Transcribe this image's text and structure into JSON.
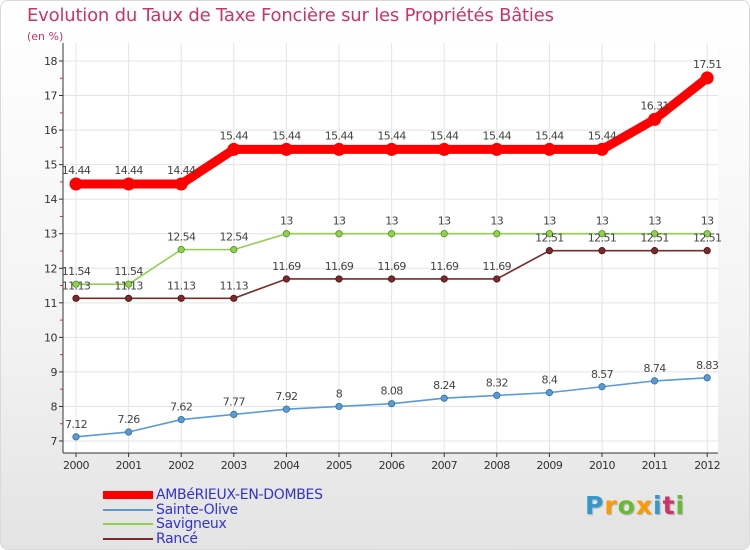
{
  "chart_data": {
    "type": "line",
    "title": "Evolution du Taux de Taxe Foncière sur les Propriétés Bâties",
    "subtitle": "(en %)",
    "x": [
      "2000",
      "2001",
      "2002",
      "2003",
      "2004",
      "2005",
      "2006",
      "2007",
      "2008",
      "2009",
      "2010",
      "2011",
      "2012"
    ],
    "yticks": [
      7,
      8,
      9,
      10,
      11,
      12,
      13,
      14,
      15,
      16,
      17,
      18
    ],
    "ylim": [
      7,
      18
    ],
    "series": [
      {
        "name": "AMBéRIEUX-EN-DOMBES",
        "color": "#ff0000",
        "values": [
          14.44,
          14.44,
          14.44,
          15.44,
          15.44,
          15.44,
          15.44,
          15.44,
          15.44,
          15.44,
          15.44,
          16.31,
          17.51
        ],
        "labels": [
          "14.44",
          "14.44",
          "14.44",
          "15.44",
          "15.44",
          "15.44",
          "15.44",
          "15.44",
          "15.44",
          "15.44",
          "15.44",
          "16.31",
          "17.51"
        ]
      },
      {
        "name": "Sainte-Olive",
        "color": "#5b9bd5",
        "values": [
          7.12,
          7.26,
          7.62,
          7.77,
          7.92,
          8,
          8.08,
          8.24,
          8.32,
          8.4,
          8.57,
          8.74,
          8.83
        ],
        "labels": [
          "7.12",
          "7.26",
          "7.62",
          "7.77",
          "7.92",
          "8",
          "8.08",
          "8.24",
          "8.32",
          "8.4",
          "8.57",
          "8.74",
          "8.83"
        ]
      },
      {
        "name": "Savigneux",
        "color": "#92d050",
        "values": [
          11.54,
          11.54,
          12.54,
          12.54,
          13,
          13,
          13,
          13,
          13,
          13,
          13,
          13,
          13
        ],
        "labels": [
          "11.54",
          "11.54",
          "12.54",
          "12.54",
          "13",
          "13",
          "13",
          "13",
          "13",
          "13",
          "13",
          "13",
          "13"
        ]
      },
      {
        "name": "Rancé",
        "color": "#7b2a2a",
        "values": [
          11.13,
          11.13,
          11.13,
          11.13,
          11.69,
          11.69,
          11.69,
          11.69,
          11.69,
          12.51,
          12.51,
          12.51,
          12.51
        ],
        "labels": [
          "11.13",
          "11.13",
          "11.13",
          "11.13",
          "11.69",
          "11.69",
          "11.69",
          "11.69",
          "11.69",
          "12.51",
          "12.51",
          "12.51",
          "12.51"
        ]
      }
    ]
  },
  "brand": {
    "letters": [
      "P",
      "r",
      "o",
      "x",
      "i",
      "t",
      "i"
    ],
    "colors": [
      "#3399cc",
      "#ff9900",
      "#66bb33",
      "#ff9900",
      "#3399cc",
      "#cc3366",
      "#66bb33"
    ]
  }
}
